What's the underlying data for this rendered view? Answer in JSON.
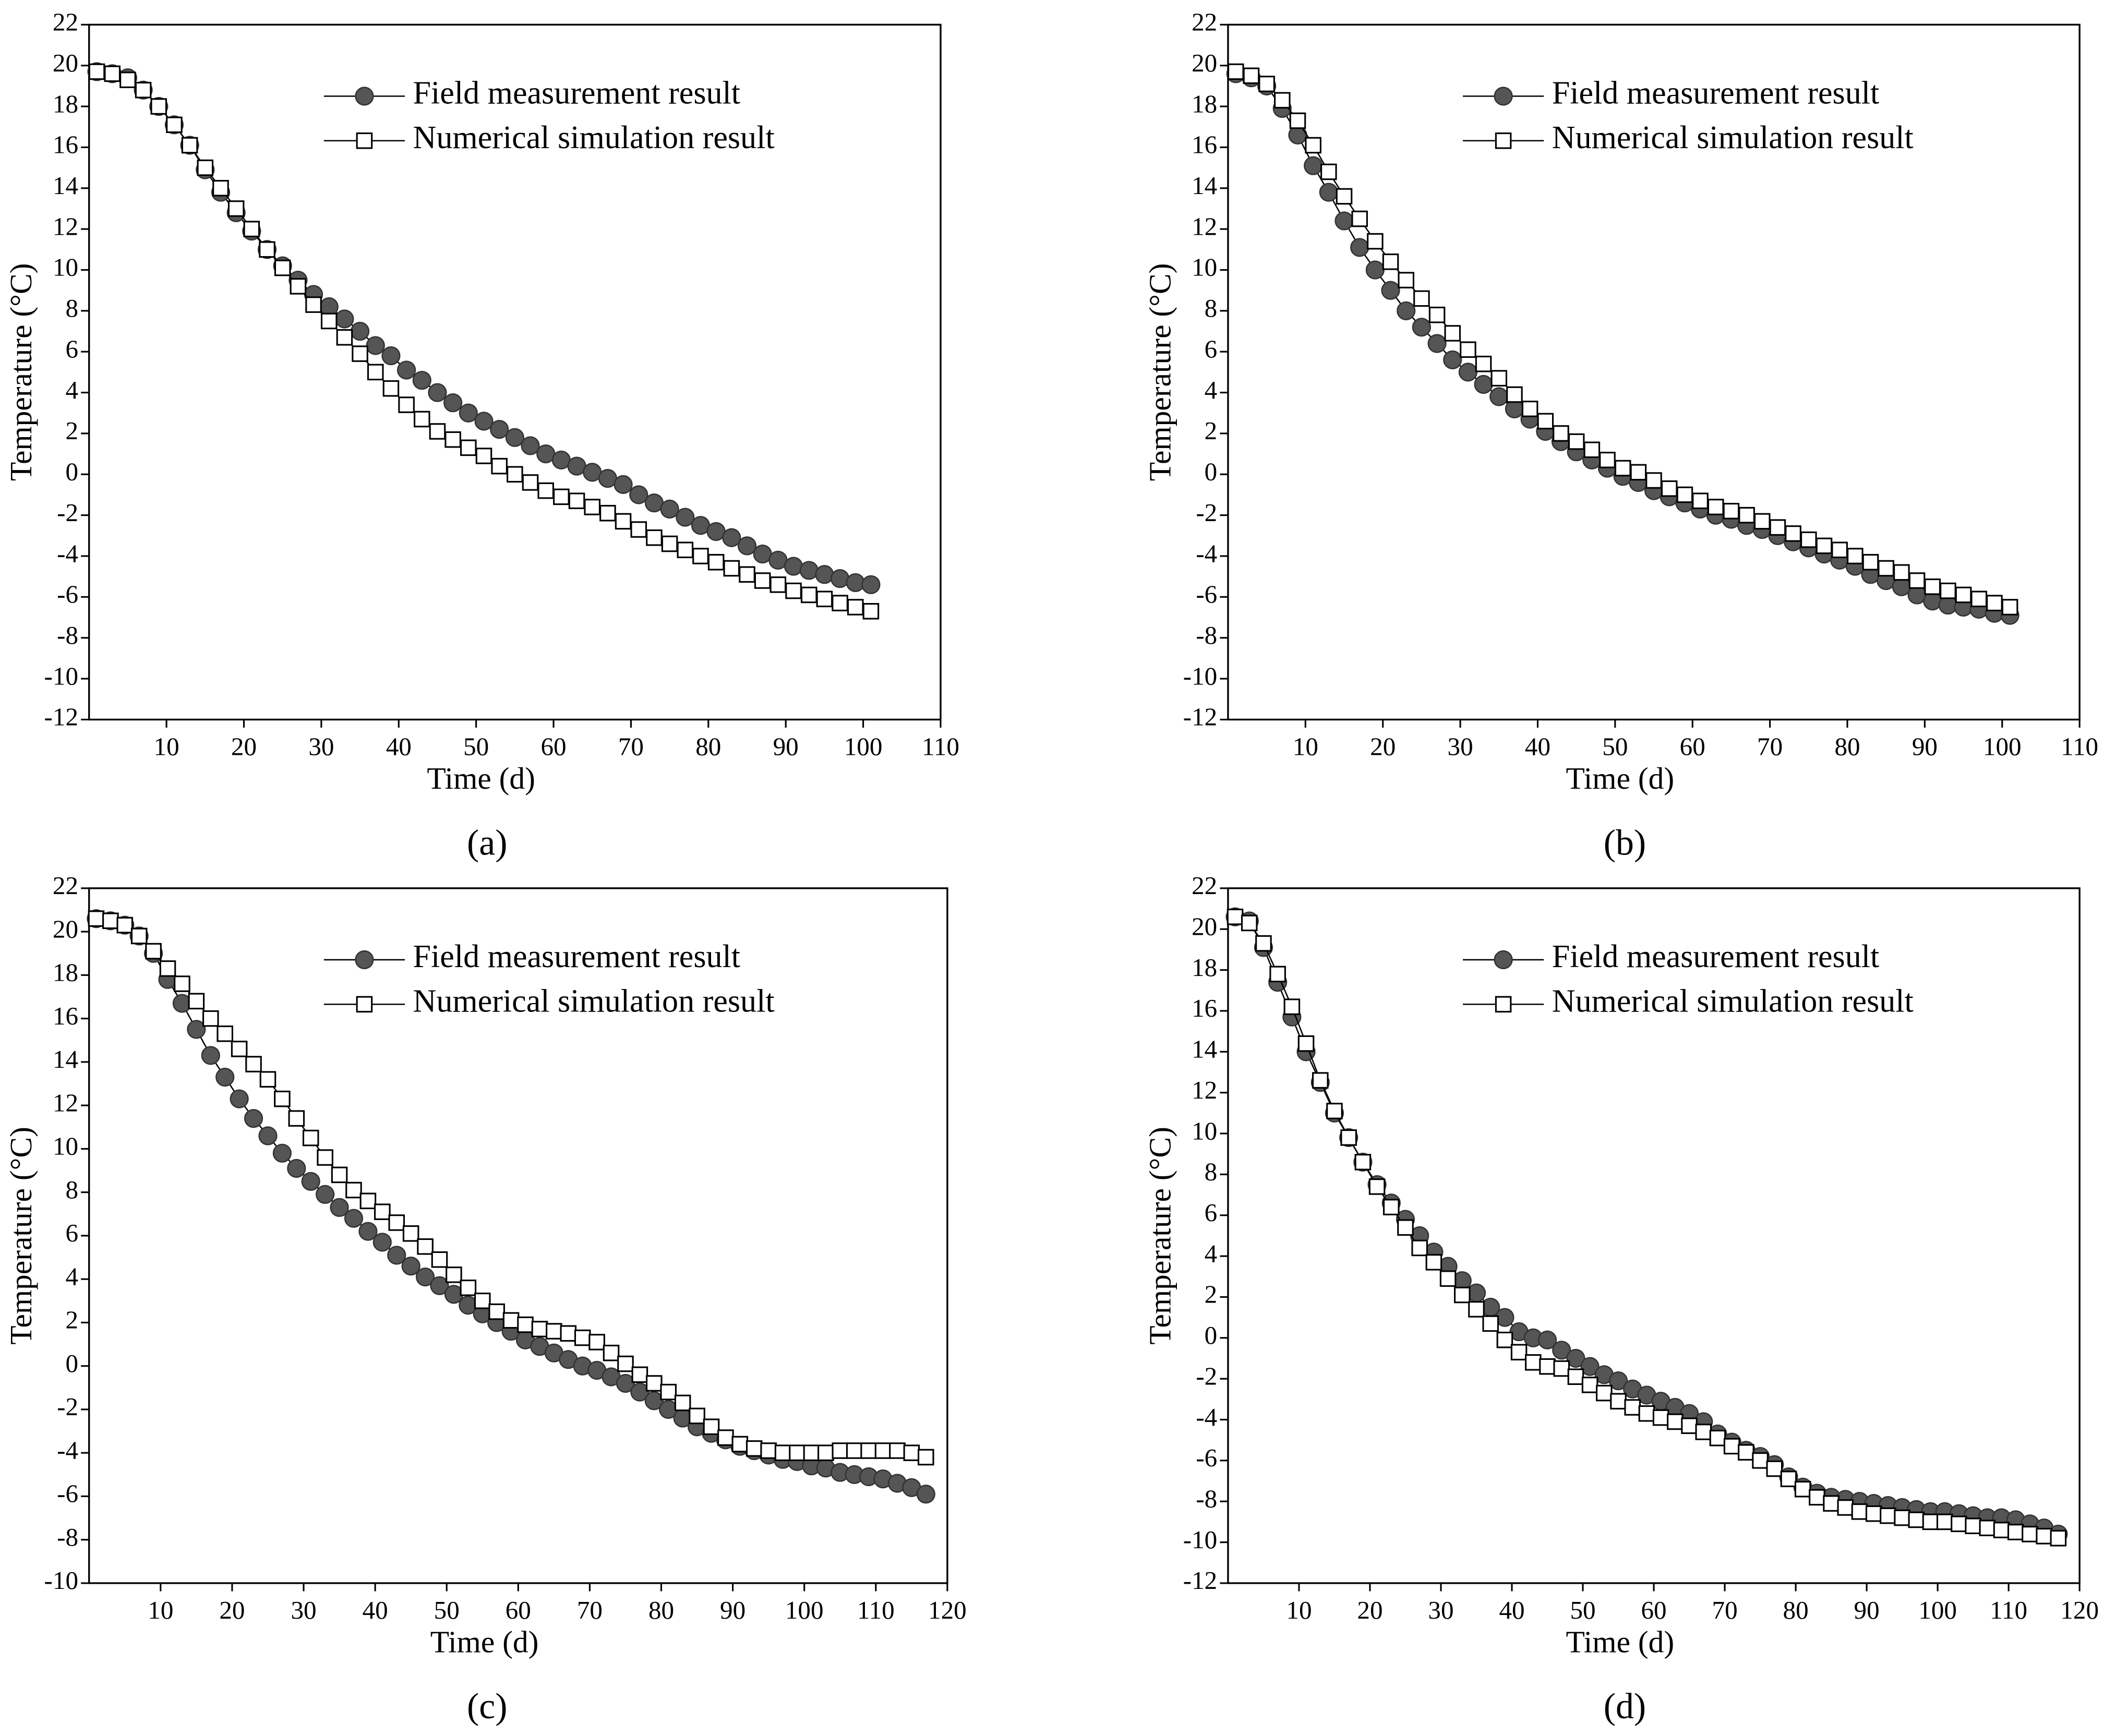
{
  "chart_data": [
    {
      "type": "line",
      "panel_label": "(a)",
      "xlabel": "Time (d)",
      "ylabel": "Temperature (°C)",
      "xlim": [
        0,
        110
      ],
      "xticks": [
        10,
        20,
        30,
        40,
        50,
        60,
        70,
        80,
        90,
        100,
        110
      ],
      "ylim": [
        -12,
        22
      ],
      "yticks": [
        -12,
        -10,
        -8,
        -6,
        -4,
        -2,
        0,
        2,
        4,
        6,
        8,
        10,
        12,
        14,
        16,
        18,
        20,
        22
      ],
      "x": [
        1,
        3,
        5,
        7,
        9,
        11,
        13,
        15,
        17,
        19,
        21,
        23,
        25,
        27,
        29,
        31,
        33,
        35,
        37,
        39,
        41,
        43,
        45,
        47,
        49,
        51,
        53,
        55,
        57,
        59,
        61,
        63,
        65,
        67,
        69,
        71,
        73,
        75,
        77,
        79,
        81,
        83,
        85,
        87,
        89,
        91,
        93,
        95,
        97,
        99,
        101
      ],
      "series": [
        {
          "name": "Field measurement result",
          "color": "#555555",
          "marker": "circle",
          "values": [
            19.7,
            19.6,
            19.4,
            18.8,
            18.0,
            17.1,
            16.1,
            14.9,
            13.8,
            12.8,
            11.9,
            11.0,
            10.2,
            9.5,
            8.8,
            8.2,
            7.6,
            7.0,
            6.3,
            5.8,
            5.1,
            4.6,
            4.0,
            3.5,
            3.0,
            2.6,
            2.2,
            1.8,
            1.4,
            1.0,
            0.7,
            0.4,
            0.1,
            -0.2,
            -0.5,
            -1.0,
            -1.4,
            -1.7,
            -2.1,
            -2.5,
            -2.8,
            -3.1,
            -3.5,
            -3.9,
            -4.2,
            -4.5,
            -4.7,
            -4.9,
            -5.1,
            -5.3,
            -5.4
          ]
        },
        {
          "name": "Numerical simulation result",
          "color": "#ffffff",
          "marker": "square",
          "values": [
            19.7,
            19.6,
            19.3,
            18.8,
            18.0,
            17.1,
            16.1,
            15.0,
            14.0,
            13.0,
            12.0,
            11.0,
            10.1,
            9.2,
            8.3,
            7.5,
            6.7,
            5.9,
            5.0,
            4.2,
            3.4,
            2.7,
            2.1,
            1.7,
            1.3,
            0.9,
            0.4,
            0.0,
            -0.4,
            -0.8,
            -1.1,
            -1.3,
            -1.6,
            -1.9,
            -2.3,
            -2.7,
            -3.1,
            -3.4,
            -3.7,
            -4.0,
            -4.3,
            -4.6,
            -4.9,
            -5.2,
            -5.4,
            -5.7,
            -5.9,
            -6.1,
            -6.3,
            -6.5,
            -6.7
          ]
        }
      ]
    },
    {
      "type": "line",
      "panel_label": "(b)",
      "xlabel": "Time (d)",
      "ylabel": "Temperature (°C)",
      "xlim": [
        0,
        110
      ],
      "xticks": [
        10,
        20,
        30,
        40,
        50,
        60,
        70,
        80,
        90,
        100,
        110
      ],
      "ylim": [
        -12,
        22
      ],
      "yticks": [
        -12,
        -10,
        -8,
        -6,
        -4,
        -2,
        0,
        2,
        4,
        6,
        8,
        10,
        12,
        14,
        16,
        18,
        20,
        22
      ],
      "x": [
        1,
        3,
        5,
        7,
        9,
        11,
        13,
        15,
        17,
        19,
        21,
        23,
        25,
        27,
        29,
        31,
        33,
        35,
        37,
        39,
        41,
        43,
        45,
        47,
        49,
        51,
        53,
        55,
        57,
        59,
        61,
        63,
        65,
        67,
        69,
        71,
        73,
        75,
        77,
        79,
        81,
        83,
        85,
        87,
        89,
        91,
        93,
        95,
        97,
        99,
        101
      ],
      "series": [
        {
          "name": "Field measurement result",
          "color": "#555555",
          "marker": "circle",
          "values": [
            19.6,
            19.4,
            19.0,
            17.9,
            16.6,
            15.1,
            13.8,
            12.4,
            11.1,
            10.0,
            9.0,
            8.0,
            7.2,
            6.4,
            5.6,
            5.0,
            4.4,
            3.8,
            3.2,
            2.7,
            2.1,
            1.6,
            1.1,
            0.7,
            0.3,
            -0.1,
            -0.4,
            -0.8,
            -1.1,
            -1.4,
            -1.7,
            -2.0,
            -2.2,
            -2.5,
            -2.7,
            -3.0,
            -3.3,
            -3.6,
            -3.9,
            -4.2,
            -4.5,
            -4.9,
            -5.2,
            -5.5,
            -5.9,
            -6.2,
            -6.4,
            -6.5,
            -6.6,
            -6.8,
            -6.9
          ]
        },
        {
          "name": "Numerical simulation result",
          "color": "#ffffff",
          "marker": "square",
          "values": [
            19.7,
            19.5,
            19.1,
            18.3,
            17.3,
            16.1,
            14.8,
            13.6,
            12.5,
            11.4,
            10.4,
            9.5,
            8.6,
            7.8,
            6.9,
            6.1,
            5.4,
            4.7,
            3.9,
            3.2,
            2.6,
            2.0,
            1.6,
            1.2,
            0.7,
            0.3,
            0.1,
            -0.3,
            -0.7,
            -1.0,
            -1.3,
            -1.6,
            -1.8,
            -2.0,
            -2.3,
            -2.6,
            -2.9,
            -3.2,
            -3.5,
            -3.7,
            -4.0,
            -4.3,
            -4.6,
            -4.8,
            -5.2,
            -5.5,
            -5.7,
            -5.9,
            -6.1,
            -6.3,
            -6.5
          ]
        }
      ]
    },
    {
      "type": "line",
      "panel_label": "(c)",
      "xlabel": "Time (d)",
      "ylabel": "Temperature (°C)",
      "xlim": [
        0,
        120
      ],
      "xticks": [
        10,
        20,
        30,
        40,
        50,
        60,
        70,
        80,
        90,
        100,
        110,
        120
      ],
      "ylim": [
        -10,
        22
      ],
      "yticks": [
        -10,
        -8,
        -6,
        -4,
        -2,
        0,
        2,
        4,
        6,
        8,
        10,
        12,
        14,
        16,
        18,
        20,
        22
      ],
      "x": [
        1,
        3,
        5,
        7,
        9,
        11,
        13,
        15,
        17,
        19,
        21,
        23,
        25,
        27,
        29,
        31,
        33,
        35,
        37,
        39,
        41,
        43,
        45,
        47,
        49,
        51,
        53,
        55,
        57,
        59,
        61,
        63,
        65,
        67,
        69,
        71,
        73,
        75,
        77,
        79,
        81,
        83,
        85,
        87,
        89,
        91,
        93,
        95,
        97,
        99,
        101,
        103,
        105,
        107,
        109,
        111,
        113,
        115,
        117
      ],
      "series": [
        {
          "name": "Field measurement result",
          "color": "#555555",
          "marker": "circle",
          "values": [
            20.6,
            20.5,
            20.3,
            19.8,
            19.0,
            17.8,
            16.7,
            15.5,
            14.3,
            13.3,
            12.3,
            11.4,
            10.6,
            9.8,
            9.1,
            8.5,
            7.9,
            7.3,
            6.8,
            6.2,
            5.7,
            5.1,
            4.6,
            4.1,
            3.7,
            3.3,
            2.8,
            2.4,
            2.0,
            1.6,
            1.2,
            0.9,
            0.6,
            0.3,
            0.0,
            -0.2,
            -0.5,
            -0.8,
            -1.2,
            -1.6,
            -2.0,
            -2.4,
            -2.8,
            -3.1,
            -3.4,
            -3.7,
            -3.9,
            -4.1,
            -4.3,
            -4.4,
            -4.6,
            -4.7,
            -4.9,
            -5.0,
            -5.1,
            -5.2,
            -5.4,
            -5.6,
            -5.9
          ]
        },
        {
          "name": "Numerical simulation result",
          "color": "#ffffff",
          "marker": "square",
          "values": [
            20.6,
            20.5,
            20.3,
            19.8,
            19.1,
            18.3,
            17.6,
            16.8,
            16.0,
            15.3,
            14.6,
            13.9,
            13.2,
            12.3,
            11.4,
            10.5,
            9.6,
            8.8,
            8.1,
            7.6,
            7.1,
            6.6,
            6.1,
            5.5,
            4.9,
            4.2,
            3.6,
            3.0,
            2.5,
            2.1,
            1.9,
            1.7,
            1.6,
            1.5,
            1.3,
            1.1,
            0.6,
            0.1,
            -0.4,
            -0.8,
            -1.2,
            -1.7,
            -2.3,
            -2.8,
            -3.3,
            -3.6,
            -3.8,
            -3.9,
            -4.0,
            -4.0,
            -4.0,
            -4.0,
            -3.9,
            -3.9,
            -3.9,
            -3.9,
            -3.9,
            -4.0,
            -4.2
          ]
        }
      ]
    },
    {
      "type": "line",
      "panel_label": "(d)",
      "xlabel": "Time (d)",
      "ylabel": "Temperature (°C)",
      "xlim": [
        0,
        120
      ],
      "xticks": [
        10,
        20,
        30,
        40,
        50,
        60,
        70,
        80,
        90,
        100,
        110,
        120
      ],
      "ylim": [
        -12,
        22
      ],
      "yticks": [
        -12,
        -10,
        -8,
        -6,
        -4,
        -2,
        0,
        2,
        4,
        6,
        8,
        10,
        12,
        14,
        16,
        18,
        20,
        22
      ],
      "x": [
        1,
        3,
        5,
        7,
        9,
        11,
        13,
        15,
        17,
        19,
        21,
        23,
        25,
        27,
        29,
        31,
        33,
        35,
        37,
        39,
        41,
        43,
        45,
        47,
        49,
        51,
        53,
        55,
        57,
        59,
        61,
        63,
        65,
        67,
        69,
        71,
        73,
        75,
        77,
        79,
        81,
        83,
        85,
        87,
        89,
        91,
        93,
        95,
        97,
        99,
        101,
        103,
        105,
        107,
        109,
        111,
        113,
        115,
        117
      ],
      "series": [
        {
          "name": "Field measurement result",
          "color": "#555555",
          "marker": "circle",
          "values": [
            20.6,
            20.4,
            19.1,
            17.4,
            15.7,
            14.0,
            12.5,
            11.0,
            9.8,
            8.6,
            7.5,
            6.6,
            5.8,
            5.0,
            4.2,
            3.5,
            2.8,
            2.2,
            1.5,
            1.0,
            0.3,
            0.0,
            -0.1,
            -0.6,
            -1.0,
            -1.4,
            -1.8,
            -2.1,
            -2.5,
            -2.8,
            -3.1,
            -3.4,
            -3.7,
            -4.1,
            -4.7,
            -5.1,
            -5.5,
            -5.8,
            -6.2,
            -6.8,
            -7.3,
            -7.6,
            -7.8,
            -7.9,
            -8.0,
            -8.1,
            -8.2,
            -8.3,
            -8.4,
            -8.5,
            -8.5,
            -8.6,
            -8.7,
            -8.8,
            -8.8,
            -8.9,
            -9.1,
            -9.3,
            -9.6
          ]
        },
        {
          "name": "Numerical simulation result",
          "color": "#ffffff",
          "marker": "square",
          "values": [
            20.6,
            20.3,
            19.3,
            17.8,
            16.2,
            14.4,
            12.6,
            11.1,
            9.8,
            8.6,
            7.4,
            6.4,
            5.4,
            4.4,
            3.7,
            2.9,
            2.1,
            1.4,
            0.7,
            -0.1,
            -0.7,
            -1.2,
            -1.4,
            -1.5,
            -1.9,
            -2.3,
            -2.7,
            -3.1,
            -3.4,
            -3.7,
            -3.9,
            -4.1,
            -4.3,
            -4.6,
            -4.9,
            -5.3,
            -5.6,
            -6.0,
            -6.4,
            -6.9,
            -7.4,
            -7.8,
            -8.1,
            -8.3,
            -8.5,
            -8.6,
            -8.7,
            -8.8,
            -8.9,
            -9.0,
            -9.0,
            -9.1,
            -9.2,
            -9.3,
            -9.4,
            -9.5,
            -9.6,
            -9.7,
            -9.8
          ]
        }
      ]
    }
  ]
}
